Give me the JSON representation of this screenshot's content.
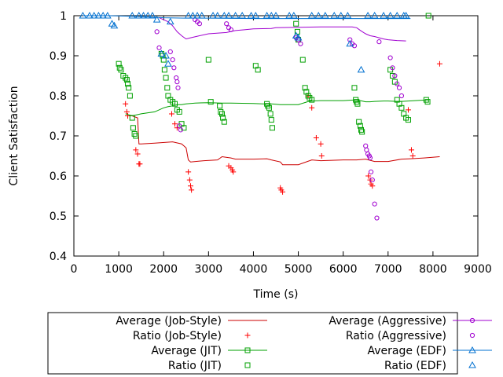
{
  "chart_data": {
    "type": "scatter",
    "xlabel": "Time (s)",
    "ylabel": "Client Satisfaction",
    "xlim": [
      0,
      9000
    ],
    "ylim": [
      0.4,
      1.0
    ],
    "xticks": [
      "0",
      "1000",
      "2000",
      "3000",
      "4000",
      "5000",
      "6000",
      "7000",
      "8000",
      "9000"
    ],
    "yticks": [
      "0.4",
      "0.5",
      "0.6",
      "0.7",
      "0.8",
      "0.9",
      "1"
    ],
    "grid": false,
    "legend_position": "bottom",
    "series": [
      {
        "name": "Average (Job-Style)",
        "kind": "line",
        "color": "#cc0000",
        "marker": "none",
        "x": [
          1150,
          1300,
          1420,
          1450,
          1500,
          1800,
          2200,
          2400,
          2500,
          2550,
          2600,
          2900,
          3200,
          3300,
          3500,
          3600,
          4000,
          4300,
          4400,
          4600,
          4650,
          5000,
          5300,
          5500,
          6000,
          6300,
          6500,
          6700,
          7000,
          7300,
          7500,
          7800,
          8150
        ],
        "y": [
          0.75,
          0.75,
          0.745,
          0.68,
          0.68,
          0.682,
          0.685,
          0.68,
          0.67,
          0.64,
          0.635,
          0.638,
          0.64,
          0.648,
          0.645,
          0.642,
          0.642,
          0.643,
          0.64,
          0.635,
          0.628,
          0.628,
          0.64,
          0.638,
          0.64,
          0.64,
          0.642,
          0.636,
          0.636,
          0.642,
          0.643,
          0.645,
          0.648
        ]
      },
      {
        "name": "Ratio (Job-Style)",
        "kind": "points",
        "color": "#ff0000",
        "marker": "plus",
        "x": [
          1150,
          1180,
          1200,
          1380,
          1420,
          1450,
          1470,
          2180,
          2250,
          2300,
          2550,
          2580,
          2600,
          2620,
          3450,
          3500,
          3530,
          3550,
          4600,
          4620,
          4650,
          5220,
          5300,
          5400,
          5500,
          5520,
          6560,
          6600,
          6620,
          6650,
          7450,
          7520,
          7550,
          8150
        ],
        "y": [
          0.78,
          0.76,
          0.75,
          0.665,
          0.655,
          0.63,
          0.63,
          0.755,
          0.73,
          0.72,
          0.61,
          0.59,
          0.575,
          0.565,
          0.625,
          0.62,
          0.615,
          0.61,
          0.57,
          0.565,
          0.56,
          0.8,
          0.77,
          0.695,
          0.68,
          0.65,
          0.6,
          0.59,
          0.58,
          0.575,
          0.765,
          0.665,
          0.65,
          0.88
        ]
      },
      {
        "name": "Average (JIT)",
        "kind": "line",
        "color": "#00a000",
        "marker": "square",
        "x": [
          1150,
          1300,
          1500,
          1800,
          2000,
          2100,
          2200,
          2300,
          2400,
          2500,
          2700,
          3000,
          3300,
          3500,
          4000,
          4200,
          4400,
          4600,
          5000,
          5200,
          5300,
          5500,
          6000,
          6300,
          6500,
          6600,
          6700,
          6900,
          7000,
          7200,
          7300,
          7600,
          7900
        ],
        "y": [
          0.755,
          0.75,
          0.755,
          0.76,
          0.77,
          0.773,
          0.775,
          0.778,
          0.778,
          0.78,
          0.782,
          0.783,
          0.782,
          0.782,
          0.781,
          0.78,
          0.78,
          0.778,
          0.778,
          0.785,
          0.787,
          0.788,
          0.788,
          0.79,
          0.785,
          0.785,
          0.786,
          0.787,
          0.787,
          0.786,
          0.786,
          0.788,
          0.79
        ]
      },
      {
        "name": "Ratio (JIT)",
        "kind": "points",
        "color": "#00a000",
        "marker": "square",
        "x": [
          1000,
          1020,
          1050,
          1100,
          1150,
          1180,
          1200,
          1220,
          1250,
          1300,
          1320,
          1350,
          1380,
          1950,
          1980,
          2000,
          2020,
          2050,
          2080,
          2100,
          2150,
          2200,
          2250,
          2300,
          2350,
          2400,
          2450,
          3000,
          3050,
          3250,
          3270,
          3300,
          3320,
          3350,
          4050,
          4100,
          4300,
          4320,
          4350,
          4380,
          4400,
          4420,
          4950,
          4980,
          5000,
          5100,
          5150,
          5180,
          5220,
          5250,
          5300,
          6250,
          6280,
          6300,
          6320,
          6350,
          6380,
          6400,
          6420,
          7050,
          7100,
          7150,
          7200,
          7250,
          7300,
          7350,
          7400,
          7450,
          7850,
          7880,
          7900
        ],
        "y": [
          0.88,
          0.87,
          0.865,
          0.85,
          0.845,
          0.84,
          0.83,
          0.82,
          0.8,
          0.745,
          0.72,
          0.705,
          0.7,
          0.905,
          0.9,
          0.89,
          0.865,
          0.845,
          0.82,
          0.8,
          0.79,
          0.785,
          0.78,
          0.765,
          0.76,
          0.73,
          0.72,
          0.89,
          0.785,
          0.775,
          0.76,
          0.755,
          0.745,
          0.735,
          0.875,
          0.865,
          0.78,
          0.775,
          0.77,
          0.755,
          0.74,
          0.72,
          0.98,
          0.96,
          0.94,
          0.89,
          0.82,
          0.81,
          0.8,
          0.795,
          0.79,
          0.82,
          0.79,
          0.785,
          0.78,
          0.735,
          0.725,
          0.715,
          0.71,
          0.865,
          0.85,
          0.835,
          0.79,
          0.78,
          0.77,
          0.755,
          0.745,
          0.74,
          0.79,
          0.785,
          1.0
        ]
      },
      {
        "name": "Average (Aggressive)",
        "kind": "line",
        "color": "#a000d0",
        "marker": "circle",
        "x": [
          1900,
          2000,
          2100,
          2200,
          2300,
          2400,
          2500,
          2600,
          2800,
          3000,
          3400,
          3600,
          3800,
          4000,
          4400,
          4500,
          5000,
          5500,
          6000,
          6200,
          6300,
          6400,
          6500,
          6600,
          6700,
          6800,
          6900,
          7000,
          7200,
          7400
        ],
        "y": [
          0.995,
          0.99,
          0.985,
          0.975,
          0.96,
          0.95,
          0.942,
          0.945,
          0.95,
          0.955,
          0.958,
          0.963,
          0.965,
          0.967,
          0.968,
          0.97,
          0.971,
          0.972,
          0.972,
          0.972,
          0.97,
          0.962,
          0.955,
          0.95,
          0.948,
          0.945,
          0.942,
          0.94,
          0.938,
          0.937
        ]
      },
      {
        "name": "Ratio (Aggressive)",
        "kind": "points",
        "color": "#a000d0",
        "marker": "circle",
        "x": [
          1850,
          1900,
          2150,
          2200,
          2230,
          2280,
          2300,
          2320,
          2350,
          2380,
          2700,
          2750,
          2800,
          3400,
          3450,
          3500,
          4950,
          5000,
          5050,
          6150,
          6200,
          6250,
          6500,
          6520,
          6550,
          6580,
          6600,
          6620,
          6650,
          6700,
          6750,
          6800,
          7050,
          7100,
          7150,
          7200,
          7250,
          7300
        ],
        "y": [
          0.96,
          0.92,
          0.91,
          0.89,
          0.87,
          0.845,
          0.835,
          0.82,
          0.725,
          0.715,
          0.99,
          0.985,
          0.98,
          0.98,
          0.97,
          0.965,
          0.945,
          0.94,
          0.93,
          0.94,
          0.93,
          0.925,
          0.675,
          0.665,
          0.655,
          0.65,
          0.645,
          0.61,
          0.59,
          0.53,
          0.495,
          0.935,
          0.895,
          0.87,
          0.85,
          0.83,
          0.82,
          0.8
        ]
      },
      {
        "name": "Average (EDF)",
        "kind": "line",
        "color": "#0070d0",
        "marker": "triangle",
        "x": [
          200,
          800,
          1500,
          2000,
          2500,
          3000,
          4000,
          5000,
          6000,
          7000,
          7500
        ],
        "y": [
          1.0,
          1.0,
          0.998,
          0.995,
          0.994,
          0.994,
          0.993,
          0.993,
          0.993,
          0.993,
          0.993
        ]
      },
      {
        "name": "Ratio (EDF)",
        "kind": "points",
        "color": "#0070d0",
        "marker": "triangle",
        "x": [
          200,
          350,
          450,
          550,
          650,
          750,
          850,
          900,
          1300,
          1450,
          1550,
          1650,
          1750,
          1850,
          1950,
          2050,
          2100,
          2150,
          2550,
          2650,
          2750,
          2850,
          3100,
          3200,
          3350,
          3450,
          3600,
          3750,
          3950,
          4050,
          4300,
          4400,
          4500,
          4800,
          4900,
          4950,
          5000,
          5300,
          5450,
          5600,
          5800,
          5950,
          6100,
          6150,
          6400,
          6550,
          6700,
          6900,
          7050,
          7200,
          7350,
          7400
        ],
        "y": [
          1.0,
          1.0,
          1.0,
          1.0,
          1.0,
          1.0,
          0.98,
          0.975,
          1.0,
          1.0,
          1.0,
          1.0,
          1.0,
          0.99,
          0.905,
          0.9,
          0.88,
          0.985,
          1.0,
          1.0,
          1.0,
          1.0,
          1.0,
          1.0,
          1.0,
          1.0,
          1.0,
          1.0,
          1.0,
          1.0,
          1.0,
          1.0,
          1.0,
          1.0,
          1.0,
          0.95,
          0.945,
          1.0,
          1.0,
          1.0,
          1.0,
          1.0,
          1.0,
          0.93,
          0.865,
          1.0,
          1.0,
          1.0,
          1.0,
          1.0,
          1.0,
          1.0
        ]
      }
    ]
  }
}
